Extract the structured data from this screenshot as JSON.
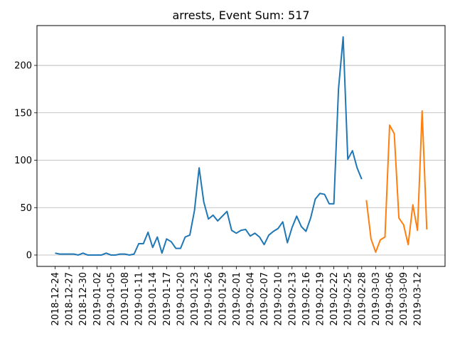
{
  "chart_data": {
    "type": "line",
    "title": "arrests, Event Sum: 517",
    "xlabel": "",
    "ylabel": "",
    "ylim": [
      -12,
      242
    ],
    "grid": "y",
    "yticks": [
      0,
      50,
      100,
      150,
      200
    ],
    "xtick_labels": [
      "2018-12-24",
      "2018-12-27",
      "2018-12-30",
      "2019-01-02",
      "2019-01-05",
      "2019-01-08",
      "2019-01-11",
      "2019-01-14",
      "2019-01-17",
      "2019-01-20",
      "2019-01-23",
      "2019-01-26",
      "2019-01-29",
      "2019-02-01",
      "2019-02-04",
      "2019-02-07",
      "2019-02-10",
      "2019-02-13",
      "2019-02-16",
      "2019-02-19",
      "2019-02-22",
      "2019-02-25",
      "2019-02-28",
      "2019-03-03",
      "2019-03-06",
      "2019-03-09",
      "2019-03-12"
    ],
    "colors": {
      "series1": "#1f77b4",
      "series2": "#ff7f0e",
      "grid": "#b0b0b0"
    },
    "series": [
      {
        "start": "2018-12-24",
        "values": [
          2,
          1,
          1,
          1,
          1,
          0,
          2,
          0,
          0,
          0,
          0,
          2,
          0,
          0,
          1,
          1,
          0,
          1,
          12,
          12,
          24,
          8,
          19,
          2,
          17,
          14,
          7,
          7,
          19,
          21,
          47,
          92,
          56,
          38,
          42,
          36,
          41,
          46,
          26,
          23,
          26,
          27,
          20,
          23,
          19,
          11,
          21,
          25,
          28,
          35,
          13,
          29,
          41,
          30,
          25,
          39,
          59,
          65,
          64,
          54,
          54,
          175,
          230,
          101,
          110,
          92,
          80
        ]
      },
      {
        "start": "2019-03-01",
        "values": [
          58,
          17,
          3,
          16,
          19,
          137,
          128,
          39,
          32,
          11,
          53,
          26,
          152,
          27
        ]
      }
    ]
  }
}
